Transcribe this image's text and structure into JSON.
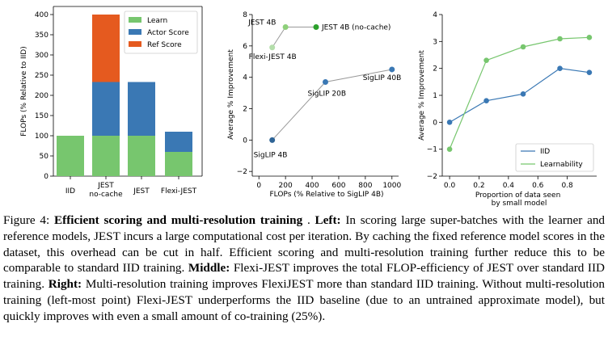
{
  "colors": {
    "learn": "#77c66e",
    "actor": "#3a78b4",
    "ref": "#e55a1f",
    "line_blue": "#3a78b4",
    "line_green": "#77c66e",
    "gray": "#999999",
    "dark_green": "#2ca02c",
    "light_green": "#8ed07a"
  },
  "chart_data": [
    {
      "type": "bar",
      "stacked": true,
      "categories": [
        "IID",
        "JEST\nno-cache",
        "JEST",
        "Flexi-JEST"
      ],
      "series": [
        {
          "name": "Learn",
          "values": [
            100,
            100,
            100,
            60
          ]
        },
        {
          "name": "Actor Score",
          "values": [
            0,
            133,
            133,
            50
          ]
        },
        {
          "name": "Ref Score",
          "values": [
            0,
            167,
            0,
            0
          ]
        }
      ],
      "ylabel": "FLOPs (% Relative to IID)",
      "ylim": [
        0,
        420
      ],
      "yticks": [
        0,
        50,
        100,
        150,
        200,
        250,
        300,
        350,
        400
      ],
      "legend": "top-right"
    },
    {
      "type": "scatter",
      "xlabel": "FLOPs (% Relative to SigLIP 4B)",
      "ylabel": "Average % Improvement",
      "xlim": [
        -50,
        1050
      ],
      "ylim": [
        -2.3,
        8
      ],
      "xticks": [
        0,
        200,
        400,
        600,
        800,
        1000
      ],
      "yticks": [
        -2,
        0,
        2,
        4,
        6,
        8
      ],
      "series": [
        {
          "name": "SigLIP",
          "points": [
            {
              "x": 100,
              "y": 0,
              "label": "SigLIP 4B"
            },
            {
              "x": 500,
              "y": 3.7,
              "label": "SigLIP 20B"
            },
            {
              "x": 1000,
              "y": 4.5,
              "label": "SigLIP 40B"
            }
          ]
        },
        {
          "name": "JEST",
          "points": [
            {
              "x": 100,
              "y": 5.9,
              "label": "Flexi-JEST 4B"
            },
            {
              "x": 200,
              "y": 7.2,
              "label": "JEST 4B"
            },
            {
              "x": 430,
              "y": 7.2,
              "label": "JEST 4B (no-cache)"
            }
          ]
        }
      ]
    },
    {
      "type": "line",
      "xlabel": "Proportion of data seen\nby small model",
      "ylabel": "Average % Improvement",
      "xlim": [
        -0.05,
        1.0
      ],
      "ylim": [
        -2,
        4
      ],
      "xticks": [
        0.0,
        0.2,
        0.4,
        0.6,
        0.8
      ],
      "yticks": [
        -2,
        -1,
        0,
        1,
        2,
        3,
        4
      ],
      "x": [
        0.0,
        0.25,
        0.5,
        0.75,
        0.95
      ],
      "series": [
        {
          "name": "IID",
          "values": [
            0,
            0.8,
            1.05,
            2.0,
            1.85
          ]
        },
        {
          "name": "Learnability",
          "values": [
            -1,
            2.3,
            2.8,
            3.1,
            3.15
          ]
        }
      ],
      "legend": "lower-right"
    }
  ],
  "caption": {
    "fig_label": "Figure 4:",
    "title": "Efficient scoring and multi-resolution training",
    "after_title": " . ",
    "left_label": "Left:",
    "left_text": " In scoring large super-batches with the learner and reference models, JEST incurs a large computational cost per iteration. By caching the fixed reference model scores in the dataset, this overhead can be cut in half. Efficient scoring and multi-resolution training further reduce this to be comparable to standard IID training. ",
    "middle_label": "Middle:",
    "middle_text": " Flexi-JEST improves the total FLOP-efficiency of JEST over standard IID training. ",
    "right_label": "Right:",
    "right_text": " Multi-resolution training improves FlexiJEST more than standard IID training. Without multi-resolution training (left-most point) Flexi-JEST underperforms the IID baseline (due to an untrained approximate model), but quickly improves with even a small amount of co-training (25%)."
  }
}
